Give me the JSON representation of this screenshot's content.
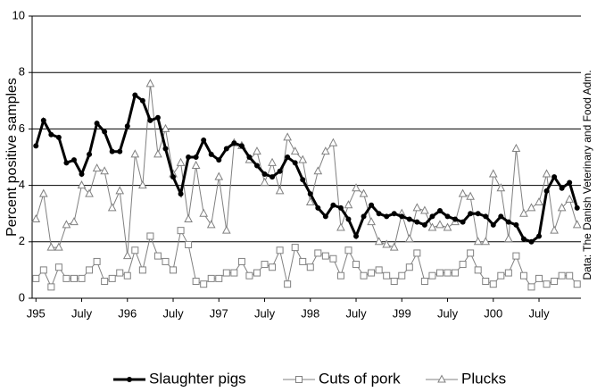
{
  "chart_data": {
    "type": "line",
    "y_label": "Percent positive samples",
    "source_note": "Data: The Danish Veterinary and Food Adm.",
    "categories": [
      "J95",
      null,
      null,
      null,
      null,
      null,
      "July",
      null,
      null,
      null,
      null,
      null,
      "J96",
      null,
      null,
      null,
      null,
      null,
      "July",
      null,
      null,
      null,
      null,
      null,
      "J97",
      null,
      null,
      null,
      null,
      null,
      "July",
      null,
      null,
      null,
      null,
      null,
      "J98",
      null,
      null,
      null,
      null,
      null,
      "July",
      null,
      null,
      null,
      null,
      null,
      "J99",
      null,
      null,
      null,
      null,
      null,
      "July",
      null,
      null,
      null,
      null,
      null,
      "J00",
      null,
      null,
      null,
      null,
      null,
      "July",
      null,
      null,
      null,
      null,
      null
    ],
    "ylim": [
      0,
      10
    ],
    "yticks": [
      0,
      2,
      4,
      6,
      8,
      10
    ],
    "grid": true,
    "legend_position": "bottom",
    "series": [
      {
        "name": "Slaughter pigs",
        "color": "#000000",
        "marker": "circle",
        "line_width": 3,
        "values": [
          5.4,
          6.3,
          5.8,
          5.7,
          4.8,
          4.9,
          4.4,
          5.1,
          6.2,
          5.9,
          5.2,
          5.2,
          6.1,
          7.2,
          7.0,
          6.3,
          6.4,
          5.3,
          4.3,
          3.7,
          5.0,
          5.0,
          5.6,
          5.1,
          4.9,
          5.3,
          5.5,
          5.4,
          5.0,
          4.7,
          4.4,
          4.3,
          4.5,
          5.0,
          4.8,
          4.2,
          3.7,
          3.2,
          2.9,
          3.3,
          3.2,
          2.8,
          2.2,
          2.9,
          3.3,
          3.0,
          2.9,
          3.0,
          2.9,
          2.8,
          2.7,
          2.6,
          2.9,
          3.1,
          2.9,
          2.8,
          2.7,
          3.0,
          3.0,
          2.9,
          2.6,
          2.9,
          2.7,
          2.6,
          2.1,
          2.0,
          2.2,
          3.8,
          4.3,
          3.9,
          4.1,
          3.2
        ]
      },
      {
        "name": "Cuts of pork",
        "color": "#808080",
        "marker": "square",
        "line_width": 1,
        "values": [
          0.7,
          1.0,
          0.4,
          1.1,
          0.7,
          0.7,
          0.7,
          1.0,
          1.3,
          0.6,
          0.7,
          0.9,
          0.8,
          1.7,
          1.0,
          2.2,
          1.5,
          1.3,
          1.0,
          2.4,
          1.9,
          0.6,
          0.5,
          0.7,
          0.7,
          0.9,
          0.9,
          1.3,
          0.8,
          0.9,
          1.2,
          1.1,
          1.7,
          0.5,
          1.8,
          1.3,
          1.1,
          1.6,
          1.5,
          1.4,
          0.8,
          1.7,
          1.2,
          0.8,
          0.9,
          1.0,
          0.8,
          0.6,
          0.8,
          1.1,
          1.6,
          0.6,
          0.8,
          0.9,
          0.9,
          0.9,
          1.2,
          1.6,
          1.0,
          0.6,
          0.5,
          0.8,
          0.9,
          1.5,
          0.8,
          0.4,
          0.7,
          0.5,
          0.6,
          0.8,
          0.8,
          0.5
        ]
      },
      {
        "name": "Plucks",
        "color": "#808080",
        "marker": "triangle",
        "line_width": 1,
        "values": [
          2.8,
          3.7,
          1.8,
          1.8,
          2.6,
          2.7,
          4.0,
          3.7,
          4.6,
          4.5,
          3.2,
          3.8,
          1.5,
          5.1,
          4.0,
          7.6,
          5.1,
          6.0,
          4.4,
          4.8,
          2.8,
          4.7,
          3.0,
          2.6,
          4.3,
          2.4,
          5.5,
          5.4,
          4.9,
          5.2,
          4.1,
          4.8,
          3.8,
          5.7,
          5.2,
          4.9,
          3.4,
          4.5,
          5.2,
          5.5,
          2.5,
          3.3,
          3.9,
          3.7,
          2.7,
          2.0,
          1.9,
          1.8,
          3.0,
          2.1,
          3.2,
          3.1,
          2.5,
          2.6,
          2.5,
          2.7,
          3.7,
          3.6,
          2.0,
          2.0,
          4.4,
          3.9,
          2.1,
          5.3,
          3.0,
          3.2,
          3.4,
          4.4,
          2.4,
          3.2,
          3.5,
          2.6
        ]
      }
    ]
  }
}
